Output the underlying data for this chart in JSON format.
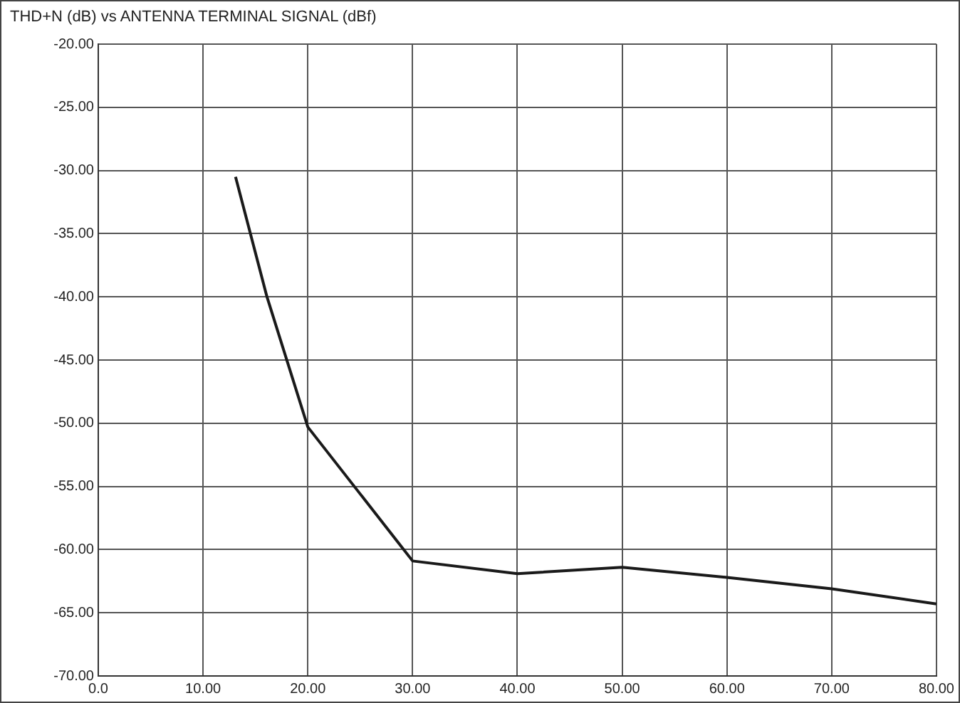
{
  "chart_data": {
    "type": "line",
    "title": "THD+N (dB) vs ANTENNA TERMINAL SIGNAL (dBf)",
    "x": [
      13.1,
      16.1,
      20,
      30,
      40,
      50,
      60,
      70,
      80
    ],
    "series": [
      {
        "color": "#1a1a1a",
        "values": [
          -30.5,
          -40,
          -50.3,
          -60.9,
          -61.9,
          -61.4,
          -62.2,
          -63.1,
          -64.3
        ]
      }
    ],
    "xlim": [
      0,
      80
    ],
    "xticks": [
      {
        "value": 0,
        "label": "0.0"
      },
      {
        "value": 10,
        "label": "10.00"
      },
      {
        "value": 20,
        "label": "20.00"
      },
      {
        "value": 30,
        "label": "30.00"
      },
      {
        "value": 40,
        "label": "40.00"
      },
      {
        "value": 50,
        "label": "50.00"
      },
      {
        "value": 60,
        "label": "60.00"
      },
      {
        "value": 70,
        "label": "70.00"
      },
      {
        "value": 80,
        "label": "80.00"
      }
    ],
    "ylim": [
      -70,
      -20
    ],
    "yticks": [
      {
        "value": -70,
        "label": "-70.00"
      },
      {
        "value": -65,
        "label": "-65.00"
      },
      {
        "value": -60,
        "label": "-60.00"
      },
      {
        "value": -55,
        "label": "-55.00"
      },
      {
        "value": -50,
        "label": "-50.00"
      },
      {
        "value": -45,
        "label": "-45.00"
      },
      {
        "value": -40,
        "label": "-40.00"
      },
      {
        "value": -35,
        "label": "-35.00"
      },
      {
        "value": -30,
        "label": "-30.00"
      },
      {
        "value": -25,
        "label": "-25.00"
      },
      {
        "value": -20,
        "label": "-20.00"
      }
    ],
    "grid": true,
    "legend": false,
    "marker": "none",
    "line_style": "solid"
  }
}
